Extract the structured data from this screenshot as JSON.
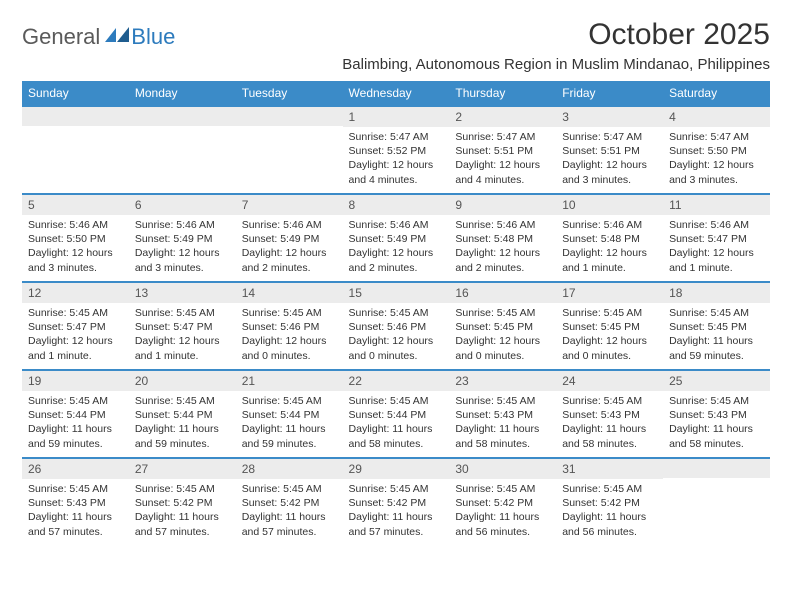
{
  "brand": {
    "part1": "General",
    "part2": "Blue",
    "text_color": "#5a5a5a",
    "accent_color": "#2d7bbd"
  },
  "title": "October 2025",
  "location": "Balimbing, Autonomous Region in Muslim Mindanao, Philippines",
  "colors": {
    "header_bg": "#3b8bc8",
    "header_text": "#ffffff",
    "daynum_bg": "#ececec",
    "daynum_text": "#555555",
    "border_top": "#3b8bc8",
    "body_text": "#333333"
  },
  "day_headers": [
    "Sunday",
    "Monday",
    "Tuesday",
    "Wednesday",
    "Thursday",
    "Friday",
    "Saturday"
  ],
  "weeks": [
    [
      {
        "empty": true
      },
      {
        "empty": true
      },
      {
        "empty": true
      },
      {
        "day": "1",
        "sunrise": "Sunrise: 5:47 AM",
        "sunset": "Sunset: 5:52 PM",
        "daylight": "Daylight: 12 hours and 4 minutes."
      },
      {
        "day": "2",
        "sunrise": "Sunrise: 5:47 AM",
        "sunset": "Sunset: 5:51 PM",
        "daylight": "Daylight: 12 hours and 4 minutes."
      },
      {
        "day": "3",
        "sunrise": "Sunrise: 5:47 AM",
        "sunset": "Sunset: 5:51 PM",
        "daylight": "Daylight: 12 hours and 3 minutes."
      },
      {
        "day": "4",
        "sunrise": "Sunrise: 5:47 AM",
        "sunset": "Sunset: 5:50 PM",
        "daylight": "Daylight: 12 hours and 3 minutes."
      }
    ],
    [
      {
        "day": "5",
        "sunrise": "Sunrise: 5:46 AM",
        "sunset": "Sunset: 5:50 PM",
        "daylight": "Daylight: 12 hours and 3 minutes."
      },
      {
        "day": "6",
        "sunrise": "Sunrise: 5:46 AM",
        "sunset": "Sunset: 5:49 PM",
        "daylight": "Daylight: 12 hours and 3 minutes."
      },
      {
        "day": "7",
        "sunrise": "Sunrise: 5:46 AM",
        "sunset": "Sunset: 5:49 PM",
        "daylight": "Daylight: 12 hours and 2 minutes."
      },
      {
        "day": "8",
        "sunrise": "Sunrise: 5:46 AM",
        "sunset": "Sunset: 5:49 PM",
        "daylight": "Daylight: 12 hours and 2 minutes."
      },
      {
        "day": "9",
        "sunrise": "Sunrise: 5:46 AM",
        "sunset": "Sunset: 5:48 PM",
        "daylight": "Daylight: 12 hours and 2 minutes."
      },
      {
        "day": "10",
        "sunrise": "Sunrise: 5:46 AM",
        "sunset": "Sunset: 5:48 PM",
        "daylight": "Daylight: 12 hours and 1 minute."
      },
      {
        "day": "11",
        "sunrise": "Sunrise: 5:46 AM",
        "sunset": "Sunset: 5:47 PM",
        "daylight": "Daylight: 12 hours and 1 minute."
      }
    ],
    [
      {
        "day": "12",
        "sunrise": "Sunrise: 5:45 AM",
        "sunset": "Sunset: 5:47 PM",
        "daylight": "Daylight: 12 hours and 1 minute."
      },
      {
        "day": "13",
        "sunrise": "Sunrise: 5:45 AM",
        "sunset": "Sunset: 5:47 PM",
        "daylight": "Daylight: 12 hours and 1 minute."
      },
      {
        "day": "14",
        "sunrise": "Sunrise: 5:45 AM",
        "sunset": "Sunset: 5:46 PM",
        "daylight": "Daylight: 12 hours and 0 minutes."
      },
      {
        "day": "15",
        "sunrise": "Sunrise: 5:45 AM",
        "sunset": "Sunset: 5:46 PM",
        "daylight": "Daylight: 12 hours and 0 minutes."
      },
      {
        "day": "16",
        "sunrise": "Sunrise: 5:45 AM",
        "sunset": "Sunset: 5:45 PM",
        "daylight": "Daylight: 12 hours and 0 minutes."
      },
      {
        "day": "17",
        "sunrise": "Sunrise: 5:45 AM",
        "sunset": "Sunset: 5:45 PM",
        "daylight": "Daylight: 12 hours and 0 minutes."
      },
      {
        "day": "18",
        "sunrise": "Sunrise: 5:45 AM",
        "sunset": "Sunset: 5:45 PM",
        "daylight": "Daylight: 11 hours and 59 minutes."
      }
    ],
    [
      {
        "day": "19",
        "sunrise": "Sunrise: 5:45 AM",
        "sunset": "Sunset: 5:44 PM",
        "daylight": "Daylight: 11 hours and 59 minutes."
      },
      {
        "day": "20",
        "sunrise": "Sunrise: 5:45 AM",
        "sunset": "Sunset: 5:44 PM",
        "daylight": "Daylight: 11 hours and 59 minutes."
      },
      {
        "day": "21",
        "sunrise": "Sunrise: 5:45 AM",
        "sunset": "Sunset: 5:44 PM",
        "daylight": "Daylight: 11 hours and 59 minutes."
      },
      {
        "day": "22",
        "sunrise": "Sunrise: 5:45 AM",
        "sunset": "Sunset: 5:44 PM",
        "daylight": "Daylight: 11 hours and 58 minutes."
      },
      {
        "day": "23",
        "sunrise": "Sunrise: 5:45 AM",
        "sunset": "Sunset: 5:43 PM",
        "daylight": "Daylight: 11 hours and 58 minutes."
      },
      {
        "day": "24",
        "sunrise": "Sunrise: 5:45 AM",
        "sunset": "Sunset: 5:43 PM",
        "daylight": "Daylight: 11 hours and 58 minutes."
      },
      {
        "day": "25",
        "sunrise": "Sunrise: 5:45 AM",
        "sunset": "Sunset: 5:43 PM",
        "daylight": "Daylight: 11 hours and 58 minutes."
      }
    ],
    [
      {
        "day": "26",
        "sunrise": "Sunrise: 5:45 AM",
        "sunset": "Sunset: 5:43 PM",
        "daylight": "Daylight: 11 hours and 57 minutes."
      },
      {
        "day": "27",
        "sunrise": "Sunrise: 5:45 AM",
        "sunset": "Sunset: 5:42 PM",
        "daylight": "Daylight: 11 hours and 57 minutes."
      },
      {
        "day": "28",
        "sunrise": "Sunrise: 5:45 AM",
        "sunset": "Sunset: 5:42 PM",
        "daylight": "Daylight: 11 hours and 57 minutes."
      },
      {
        "day": "29",
        "sunrise": "Sunrise: 5:45 AM",
        "sunset": "Sunset: 5:42 PM",
        "daylight": "Daylight: 11 hours and 57 minutes."
      },
      {
        "day": "30",
        "sunrise": "Sunrise: 5:45 AM",
        "sunset": "Sunset: 5:42 PM",
        "daylight": "Daylight: 11 hours and 56 minutes."
      },
      {
        "day": "31",
        "sunrise": "Sunrise: 5:45 AM",
        "sunset": "Sunset: 5:42 PM",
        "daylight": "Daylight: 11 hours and 56 minutes."
      },
      {
        "empty": true
      }
    ]
  ]
}
